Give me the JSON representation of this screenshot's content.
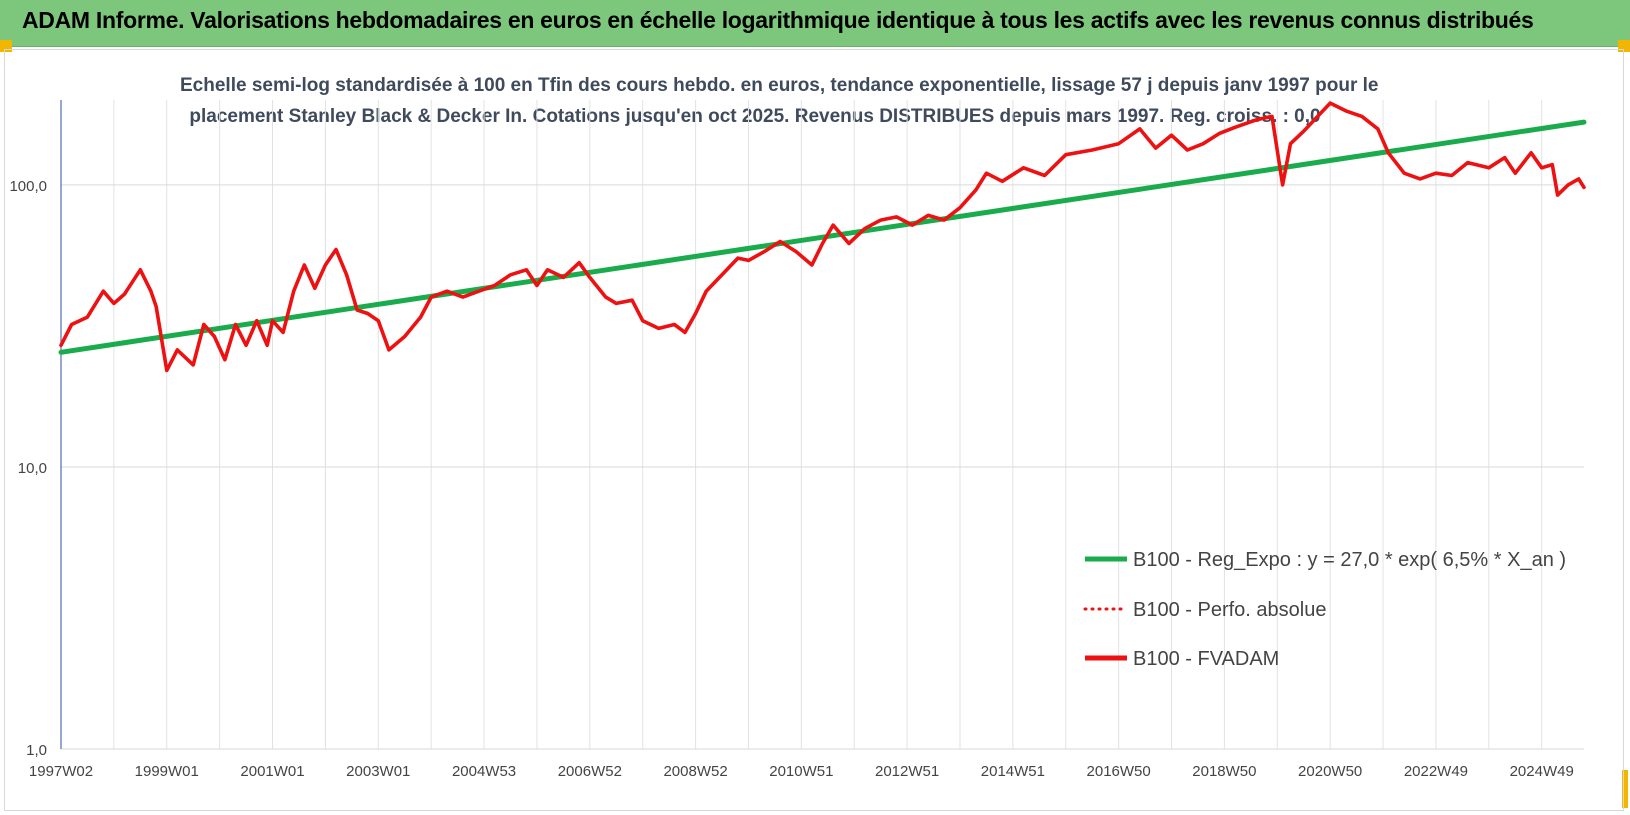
{
  "header": {
    "title": "ADAM Informe. Valorisations hebdomadaires en euros en échelle logarithmique identique à tous les actifs avec les revenus connus distribués"
  },
  "colors": {
    "banner": "#7dc77d",
    "trend": "#1aac4c",
    "fvadam": "#ee1111",
    "perfo": "#ee1111",
    "accent": "#f2b600"
  },
  "chart_data": {
    "type": "line",
    "title_lines": [
      "Echelle semi-log standardisée à 100 en Tfin des cours hebdo. en euros, tendance exponentielle, lissage 57 j depuis janv 1997 pour le",
      "placement Stanley Black & Decker In. Cotations jusqu'en oct 2025. Revenus DISTRIBUES depuis mars 1997. Reg. croiss. : 0,0"
    ],
    "y_scale": "log",
    "ylim": [
      1,
      200
    ],
    "y_ticks": [
      {
        "value": 1,
        "label": "1,0"
      },
      {
        "value": 10,
        "label": "10,0"
      },
      {
        "value": 100,
        "label": "100,0"
      }
    ],
    "x_range_years": [
      1997.0,
      2025.8
    ],
    "x_ticks": [
      {
        "t": 1997.0,
        "label": "1997W02"
      },
      {
        "t": 1999.0,
        "label": "1999W01"
      },
      {
        "t": 2001.0,
        "label": "2001W01"
      },
      {
        "t": 2003.0,
        "label": "2003W01"
      },
      {
        "t": 2005.0,
        "label": "2004W53"
      },
      {
        "t": 2007.0,
        "label": "2006W52"
      },
      {
        "t": 2009.0,
        "label": "2008W52"
      },
      {
        "t": 2011.0,
        "label": "2010W51"
      },
      {
        "t": 2013.0,
        "label": "2012W51"
      },
      {
        "t": 2015.0,
        "label": "2014W51"
      },
      {
        "t": 2017.0,
        "label": "2016W50"
      },
      {
        "t": 2019.0,
        "label": "2018W50"
      },
      {
        "t": 2021.0,
        "label": "2020W50"
      },
      {
        "t": 2023.0,
        "label": "2022W49"
      },
      {
        "t": 2025.0,
        "label": "2024W49"
      }
    ],
    "grid_every_years": 1,
    "legend_position": "bottom-right",
    "series": [
      {
        "name": "B100 - Reg_Expo : y = 27,0 * exp( 6,5% *  X_an )",
        "style": "solid-thick",
        "color": "#1aac4c",
        "x": [
          1997.0,
          2025.8
        ],
        "y": [
          25.5,
          167
        ]
      },
      {
        "name": "B100 - Perfo. absolue",
        "style": "dotted",
        "color": "#ee1111",
        "x": [],
        "y": []
      },
      {
        "name": "B100 - FVADAM",
        "style": "solid-thick",
        "color": "#ee1111",
        "x": [
          1997.0,
          1997.2,
          1997.5,
          1997.8,
          1998.0,
          1998.2,
          1998.5,
          1998.7,
          1998.8,
          1999.0,
          1999.2,
          1999.5,
          1999.7,
          1999.9,
          2000.1,
          2000.3,
          2000.5,
          2000.7,
          2000.9,
          2001.0,
          2001.2,
          2001.4,
          2001.6,
          2001.8,
          2002.0,
          2002.2,
          2002.4,
          2002.6,
          2002.8,
          2003.0,
          2003.2,
          2003.5,
          2003.8,
          2004.0,
          2004.3,
          2004.6,
          2004.9,
          2005.2,
          2005.5,
          2005.8,
          2006.0,
          2006.2,
          2006.5,
          2006.8,
          2007.0,
          2007.3,
          2007.5,
          2007.8,
          2008.0,
          2008.3,
          2008.6,
          2008.8,
          2009.0,
          2009.2,
          2009.5,
          2009.8,
          2010.0,
          2010.3,
          2010.6,
          2010.9,
          2011.2,
          2011.4,
          2011.6,
          2011.9,
          2012.2,
          2012.5,
          2012.8,
          2013.1,
          2013.4,
          2013.7,
          2014.0,
          2014.3,
          2014.5,
          2014.8,
          2015.2,
          2015.6,
          2016.0,
          2016.5,
          2017.0,
          2017.4,
          2017.7,
          2018.0,
          2018.3,
          2018.6,
          2018.9,
          2019.2,
          2019.6,
          2019.9,
          2020.1,
          2020.25,
          2020.5,
          2020.8,
          2021.0,
          2021.3,
          2021.6,
          2021.9,
          2022.1,
          2022.4,
          2022.7,
          2023.0,
          2023.3,
          2023.6,
          2024.0,
          2024.3,
          2024.5,
          2024.8,
          2025.0,
          2025.2,
          2025.3,
          2025.5,
          2025.7,
          2025.8
        ],
        "y": [
          27,
          32,
          34,
          42,
          38,
          41,
          50,
          42,
          37,
          22,
          26,
          23,
          32,
          29,
          24,
          32,
          27,
          33,
          27,
          33,
          30,
          42,
          52,
          43,
          52,
          59,
          48,
          36,
          35,
          33,
          26,
          29,
          34,
          40,
          42,
          40,
          42,
          44,
          48,
          50,
          44,
          50,
          47,
          53,
          47,
          40,
          38,
          39,
          33,
          31,
          32,
          30,
          35,
          42,
          48,
          55,
          54,
          58,
          63,
          58,
          52,
          62,
          72,
          62,
          70,
          75,
          77,
          72,
          78,
          75,
          83,
          96,
          110,
          103,
          115,
          108,
          128,
          133,
          140,
          158,
          135,
          150,
          133,
          140,
          152,
          160,
          170,
          175,
          100,
          140,
          155,
          178,
          195,
          183,
          175,
          158,
          130,
          110,
          105,
          110,
          108,
          120,
          115,
          125,
          110,
          130,
          115,
          118,
          92,
          100,
          105,
          98
        ]
      }
    ]
  }
}
